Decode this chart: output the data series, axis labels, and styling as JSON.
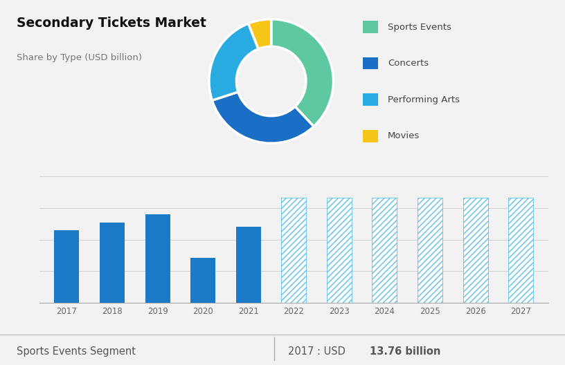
{
  "title": "Secondary Tickets Market",
  "subtitle": "Share by Type (USD billion)",
  "bg_top_color": "#d0d9e8",
  "bg_bottom_color": "#f2f2f2",
  "donut_labels": [
    "Sports Events",
    "Concerts",
    "Performing Arts",
    "Movies"
  ],
  "donut_values": [
    38,
    32,
    24,
    6
  ],
  "donut_colors": [
    "#5ec8a0",
    "#1a6fc4",
    "#29abe2",
    "#f5c518"
  ],
  "bar_years": [
    2017,
    2018,
    2019,
    2020,
    2021,
    2022,
    2023,
    2024,
    2025,
    2026,
    2027
  ],
  "bar_values_solid": [
    13.76,
    15.2,
    16.8,
    8.5,
    14.5
  ],
  "bar_values_hatch": [
    20.0,
    20.0,
    20.0,
    20.0,
    20.0,
    20.0
  ],
  "bar_color_solid": "#1a7ac7",
  "bar_color_hatch": "#5bbfe8",
  "bar_hatch_pattern": "////",
  "footer_left": "Sports Events Segment",
  "footer_divider": "|",
  "footer_right_prefix": "2017 : USD ",
  "footer_right_bold": "13.76 billion",
  "grid_color": "#d0d0d0",
  "axis_label_color": "#666666",
  "title_color": "#111111",
  "subtitle_color": "#777777",
  "legend_text_color": "#444444"
}
